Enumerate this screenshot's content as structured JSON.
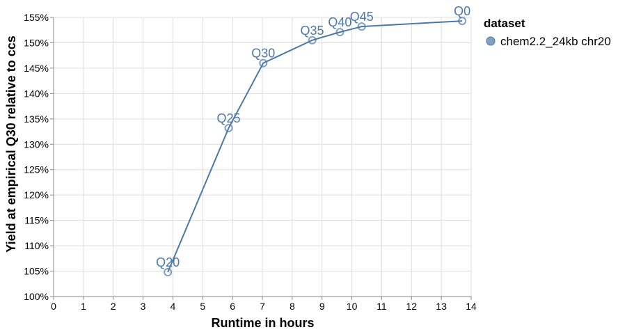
{
  "chart_data": {
    "type": "line",
    "xlabel": "Runtime in hours",
    "ylabel": "Yield at empirical Q30 relative to ccs",
    "xlim": [
      0,
      14
    ],
    "ylim": [
      100,
      155
    ],
    "x_ticks": [
      "0",
      "1",
      "2",
      "3",
      "4",
      "5",
      "6",
      "7",
      "8",
      "9",
      "10",
      "11",
      "12",
      "13",
      "14"
    ],
    "y_ticks": [
      "100%",
      "105%",
      "110%",
      "115%",
      "120%",
      "125%",
      "130%",
      "135%",
      "140%",
      "145%",
      "150%",
      "155%"
    ],
    "grid": true,
    "legend": {
      "title": "dataset",
      "position": "right",
      "entries": [
        "chem2.2_24kb chr20"
      ]
    },
    "series": [
      {
        "name": "chem2.2_24kb chr20",
        "color": "#4c78a8",
        "points": [
          {
            "x": 3.83,
            "y": 104.8,
            "label": "Q20"
          },
          {
            "x": 5.87,
            "y": 133.2,
            "label": "Q25"
          },
          {
            "x": 7.03,
            "y": 146.0,
            "label": "Q30"
          },
          {
            "x": 8.67,
            "y": 150.5,
            "label": "Q35"
          },
          {
            "x": 9.6,
            "y": 152.1,
            "label": "Q40"
          },
          {
            "x": 10.33,
            "y": 153.2,
            "label": "Q45"
          },
          {
            "x": 13.7,
            "y": 154.3,
            "label": "Q0"
          }
        ]
      }
    ]
  }
}
